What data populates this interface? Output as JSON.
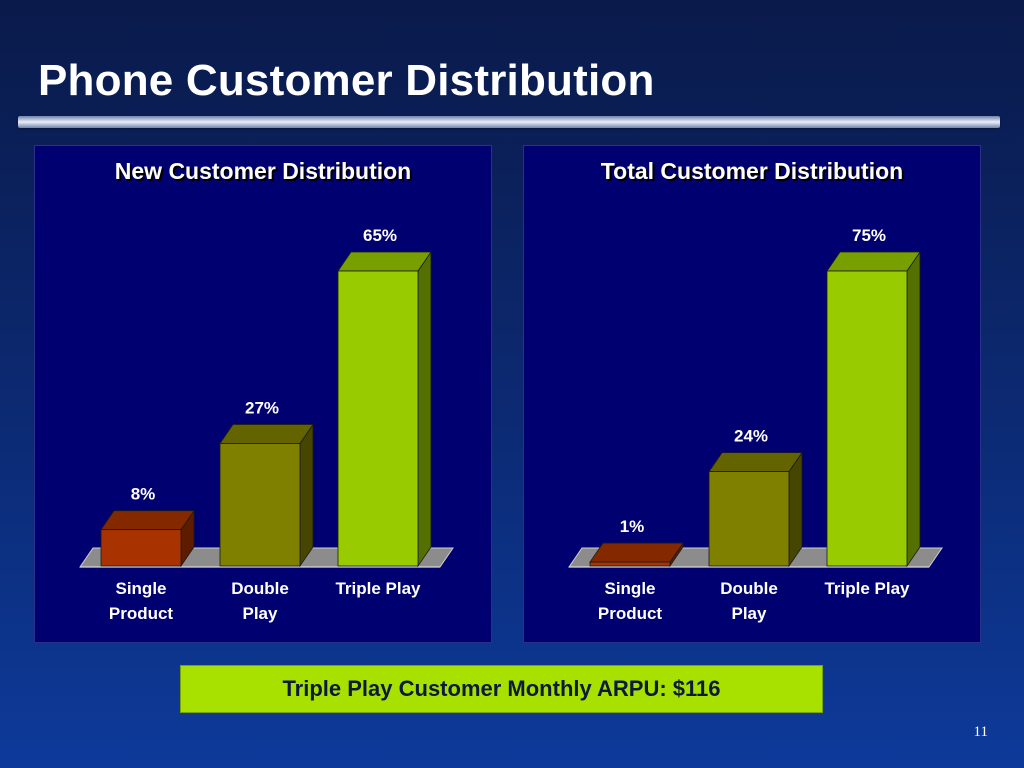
{
  "slide": {
    "title": "Phone Customer Distribution",
    "page_number": "11"
  },
  "callout": {
    "text": "Triple Play Customer Monthly ARPU: $116"
  },
  "colors": {
    "single_product": "#a93300",
    "double_play": "#7f7f00",
    "triple_play": "#99cc00",
    "panel_background": "#000070",
    "callout_background": "#a8e000"
  },
  "chart_data": [
    {
      "type": "bar",
      "title": "New Customer Distribution",
      "categories": [
        "Single\nProduct",
        "Double\nPlay",
        "Triple Play"
      ],
      "values": [
        8,
        27,
        65
      ],
      "data_labels": [
        "8%",
        "27%",
        "65%"
      ],
      "ylim": [
        0,
        65
      ],
      "grid": false,
      "legend": "none"
    },
    {
      "type": "bar",
      "title": "Total Customer Distribution",
      "categories": [
        "Single\nProduct",
        "Double\nPlay",
        "Triple Play"
      ],
      "values": [
        1,
        24,
        75
      ],
      "data_labels": [
        "1%",
        "24%",
        "75%"
      ],
      "ylim": [
        0,
        75
      ],
      "grid": false,
      "legend": "none"
    }
  ]
}
